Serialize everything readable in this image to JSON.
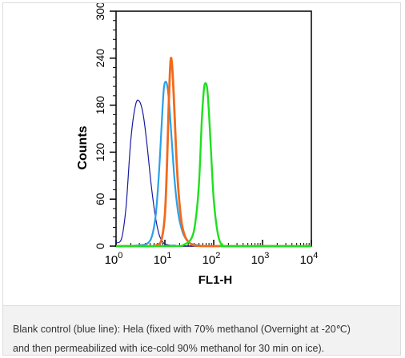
{
  "caption": {
    "line1": "Blank control (blue line): Hela (fixed with 70% methanol (Overnight at -20℃)",
    "line2": "and then permeabilized with ice-cold 90% methanol for 30 min on ice)."
  },
  "chart_data": {
    "type": "line",
    "title": "",
    "xlabel": "FL1-H",
    "ylabel": "Counts",
    "x_scale": "log",
    "xlim": [
      1,
      10000
    ],
    "ylim": [
      0,
      300
    ],
    "x_ticks": [
      {
        "value": 1,
        "base": "10",
        "exp": "0"
      },
      {
        "value": 10,
        "base": "10",
        "exp": "1"
      },
      {
        "value": 100,
        "base": "10",
        "exp": "2"
      },
      {
        "value": 1000,
        "base": "10",
        "exp": "3"
      },
      {
        "value": 10000,
        "base": "10",
        "exp": "4"
      }
    ],
    "y_ticks": [
      "0",
      "60",
      "120",
      "180",
      "240",
      "300"
    ],
    "grid": false,
    "series": [
      {
        "color": "#1a1aa0",
        "x": [
          1,
          1.3,
          1.6,
          2.0,
          2.5,
          3.0,
          3.6,
          4.3,
          5.2,
          6.3,
          7.6,
          9.1,
          11,
          13,
          16,
          20,
          30,
          100,
          10000
        ],
        "y": [
          4,
          10,
          50,
          135,
          180,
          185,
          168,
          130,
          80,
          40,
          15,
          5,
          2,
          1,
          1,
          0,
          0,
          0,
          0
        ]
      },
      {
        "color": "#2aa0e8",
        "x": [
          1,
          3,
          4.5,
          5.5,
          6.5,
          7.5,
          8.5,
          9.5,
          10.5,
          11.5,
          12.5,
          14,
          16,
          19,
          23,
          28,
          35,
          50,
          100,
          10000
        ],
        "y": [
          0,
          1,
          4,
          14,
          40,
          90,
          150,
          200,
          210,
          200,
          175,
          130,
          80,
          40,
          18,
          8,
          3,
          1,
          0,
          0
        ]
      },
      {
        "color": "#f26a1b",
        "x": [
          1,
          5,
          7,
          8.5,
          10,
          11,
          12,
          13,
          14,
          15.5,
          17,
          19,
          22,
          26,
          32,
          40,
          60,
          100,
          10000
        ],
        "y": [
          0,
          0,
          2,
          8,
          40,
          100,
          180,
          235,
          232,
          180,
          120,
          70,
          30,
          12,
          4,
          1,
          0,
          0,
          0
        ]
      },
      {
        "color": "#1ee01e",
        "x": [
          1,
          15,
          25,
          35,
          42,
          50,
          57,
          63,
          68,
          74,
          80,
          90,
          100,
          115,
          130,
          150,
          200,
          10000
        ],
        "y": [
          0,
          0,
          2,
          10,
          30,
          80,
          160,
          200,
          208,
          200,
          170,
          110,
          60,
          25,
          8,
          2,
          0,
          0
        ]
      }
    ]
  }
}
